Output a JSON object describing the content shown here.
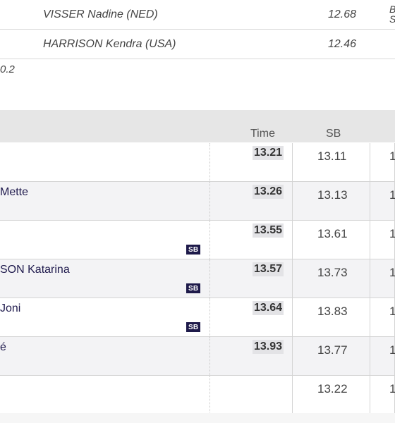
{
  "top_results": [
    {
      "name": "VISSER Nadine (NED)",
      "time": "12.68",
      "extra_line1": "B",
      "extra_line2": "S"
    },
    {
      "name": "HARRISON Kendra (USA)",
      "time": "12.46"
    }
  ],
  "wind": "0.2",
  "table": {
    "headers": {
      "time": "Time",
      "sb": "SB"
    },
    "rows": [
      {
        "athlete": "",
        "time": "13.21",
        "sb": "13.11",
        "pb": "1",
        "badge": ""
      },
      {
        "athlete": "Mette",
        "time": "13.26",
        "sb": "13.13",
        "pb": "1",
        "badge": ""
      },
      {
        "athlete": "",
        "time": "13.55",
        "sb": "13.61",
        "pb": "1",
        "badge": "SB"
      },
      {
        "athlete": "SON Katarina",
        "time": "13.57",
        "sb": "13.73",
        "pb": "1",
        "badge": "SB"
      },
      {
        "athlete": " Joni",
        "time": "13.64",
        "sb": "13.83",
        "pb": "1",
        "badge": "SB"
      },
      {
        "athlete": "é",
        "time": "13.93",
        "sb": "13.77",
        "pb": "1",
        "badge": ""
      },
      {
        "athlete": "",
        "time": "",
        "sb": "13.22",
        "pb": "1",
        "badge": ""
      }
    ]
  }
}
